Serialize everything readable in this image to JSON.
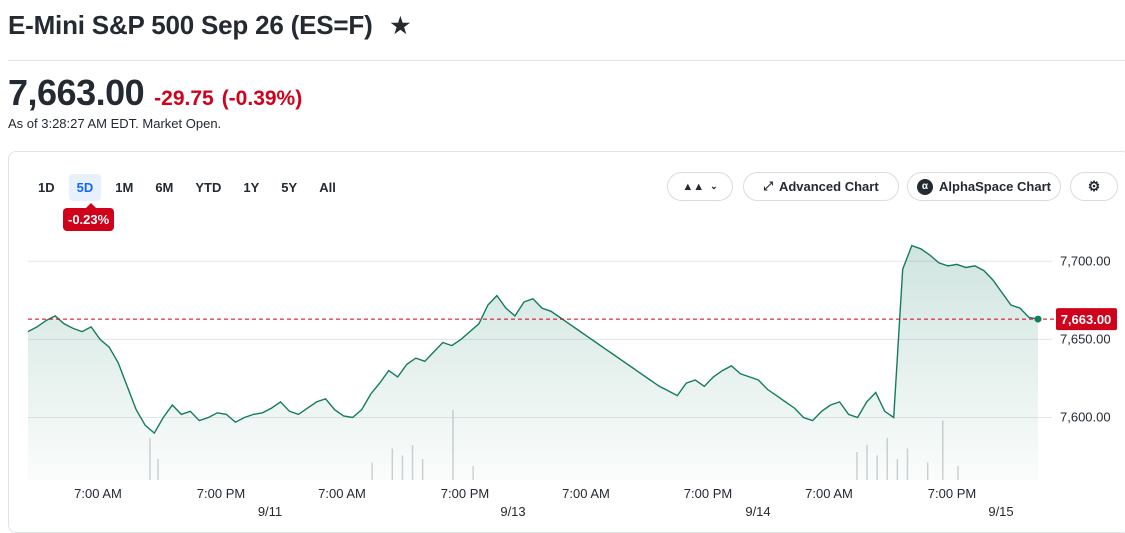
{
  "header": {
    "title": "E-Mini S&P 500 Sep 26 (ES=F)",
    "star_icon": "star-icon"
  },
  "quote": {
    "price": "7,663.00",
    "change": "-29.75",
    "change_pct": "(-0.39%)",
    "as_of": "As of 3:28:27 AM EDT. Market Open."
  },
  "ranges": [
    "1D",
    "5D",
    "1M",
    "6M",
    "YTD",
    "1Y",
    "5Y",
    "All"
  ],
  "active_range": "5D",
  "range_change_badge": "-0.23%",
  "toolbar": {
    "chart_type_icon": "mountain-chart-icon",
    "advanced_label": "Advanced Chart",
    "alphaspace_label": "AlphaSpace Chart",
    "settings_icon": "gear-icon"
  },
  "colors": {
    "line": "#137b5e",
    "negative": "#d0021b",
    "reference": "#d0021b"
  },
  "chart_data": {
    "type": "area",
    "y_ticks": [
      7600,
      7650,
      7700
    ],
    "y_tick_labels": [
      "7,600.00",
      "7,650.00",
      "7,700.00"
    ],
    "ylim": [
      7560,
      7720
    ],
    "x_tick_labels": [
      "7:00 AM",
      "7:00 PM",
      "7:00 AM",
      "7:00 PM",
      "7:00 AM",
      "7:00 PM",
      "7:00 AM",
      "7:00 PM"
    ],
    "date_labels": [
      "9/11",
      "9/13",
      "9/14",
      "9/15"
    ],
    "previous_close": 7663.0,
    "previous_close_label": "7,663.00",
    "last_price": 7663.0,
    "series_values": [
      7655,
      7658,
      7662,
      7665,
      7660,
      7657,
      7655,
      7658,
      7650,
      7645,
      7635,
      7620,
      7605,
      7595,
      7590,
      7600,
      7608,
      7602,
      7604,
      7598,
      7600,
      7603,
      7602,
      7597,
      7600,
      7602,
      7603,
      7606,
      7610,
      7604,
      7602,
      7606,
      7610,
      7612,
      7605,
      7601,
      7600,
      7605,
      7615,
      7622,
      7630,
      7626,
      7634,
      7638,
      7636,
      7642,
      7648,
      7646,
      7650,
      7655,
      7660,
      7672,
      7678,
      7670,
      7665,
      7674,
      7676,
      7670,
      7668,
      7664,
      7660,
      7656,
      7652,
      7648,
      7644,
      7640,
      7636,
      7632,
      7628,
      7624,
      7620,
      7617,
      7614,
      7622,
      7624,
      7620,
      7626,
      7630,
      7633,
      7628,
      7626,
      7624,
      7618,
      7614,
      7610,
      7606,
      7600,
      7598,
      7604,
      7608,
      7610,
      7602,
      7600,
      7610,
      7616,
      7604,
      7600,
      7695,
      7710,
      7708,
      7704,
      7699,
      7697,
      7698,
      7696,
      7697,
      7694,
      7688,
      7680,
      7672,
      7670,
      7664,
      7663
    ],
    "volume_bars": [
      {
        "pos": 0.12,
        "h": 0.6
      },
      {
        "pos": 0.128,
        "h": 0.3
      },
      {
        "pos": 0.34,
        "h": 0.25
      },
      {
        "pos": 0.36,
        "h": 0.45
      },
      {
        "pos": 0.37,
        "h": 0.35
      },
      {
        "pos": 0.38,
        "h": 0.5
      },
      {
        "pos": 0.39,
        "h": 0.3
      },
      {
        "pos": 0.42,
        "h": 1.0
      },
      {
        "pos": 0.44,
        "h": 0.2
      },
      {
        "pos": 0.82,
        "h": 0.4
      },
      {
        "pos": 0.83,
        "h": 0.5
      },
      {
        "pos": 0.84,
        "h": 0.35
      },
      {
        "pos": 0.85,
        "h": 0.6
      },
      {
        "pos": 0.86,
        "h": 0.3
      },
      {
        "pos": 0.87,
        "h": 0.45
      },
      {
        "pos": 0.89,
        "h": 0.25
      },
      {
        "pos": 0.905,
        "h": 0.85
      },
      {
        "pos": 0.92,
        "h": 0.2
      }
    ]
  }
}
